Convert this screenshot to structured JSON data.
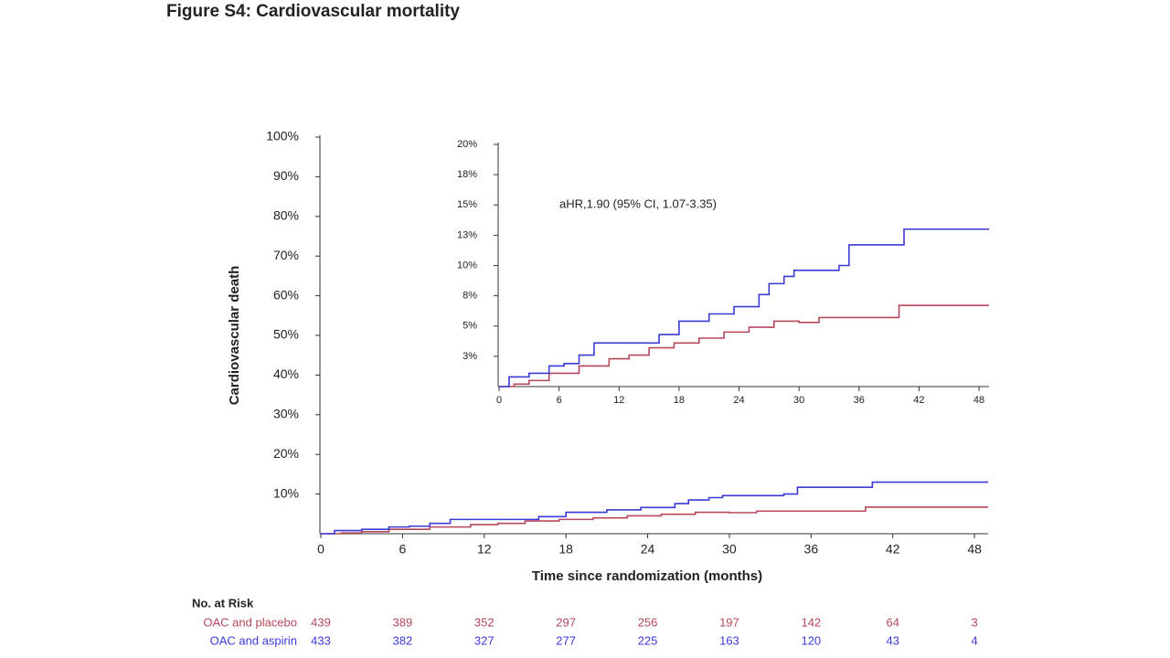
{
  "title": "Figure S4: Cardiovascular mortality",
  "chart_data": [
    {
      "type": "line",
      "step": true,
      "y_label": "Cardiovascular death",
      "x_label": "Time since randomization (months)",
      "xlim": [
        0,
        49
      ],
      "xticks": [
        0,
        6,
        12,
        18,
        24,
        30,
        36,
        42,
        48
      ],
      "ylim": [
        0,
        100
      ],
      "yticks": [
        {
          "value": 10,
          "label": "10%"
        },
        {
          "value": 20,
          "label": "20%"
        },
        {
          "value": 30,
          "label": "30%"
        },
        {
          "value": 40,
          "label": "40%"
        },
        {
          "value": 50,
          "label": "50%"
        },
        {
          "value": 60,
          "label": "60%"
        },
        {
          "value": 70,
          "label": "70%"
        },
        {
          "value": 80,
          "label": "80%"
        },
        {
          "value": 90,
          "label": "90%"
        },
        {
          "value": 100,
          "label": "100%"
        }
      ],
      "series": [
        {
          "name": "OAC and placebo",
          "color": "#b5485a",
          "x": [
            0,
            1.5,
            3,
            5,
            8,
            11,
            13,
            15,
            17.5,
            20,
            22.5,
            25,
            27.5,
            30,
            32,
            40,
            49
          ],
          "values": [
            0,
            0.2,
            0.5,
            1.1,
            1.7,
            2.3,
            2.6,
            3.2,
            3.6,
            4.0,
            4.5,
            4.9,
            5.4,
            5.3,
            5.7,
            6.7,
            6.7
          ]
        },
        {
          "name": "OAC and aspirin",
          "color": "#3a3ad6",
          "x": [
            0,
            1,
            3,
            5,
            6.5,
            8,
            9.5,
            16,
            18,
            21,
            23.5,
            26,
            27,
            28.5,
            29.5,
            34,
            35,
            40.5,
            49
          ],
          "values": [
            0,
            0.8,
            1.1,
            1.7,
            1.9,
            2.6,
            3.6,
            4.3,
            5.4,
            6.0,
            6.6,
            7.6,
            8.5,
            9.1,
            9.6,
            10.0,
            11.7,
            13.0,
            13.0
          ]
        }
      ]
    },
    {
      "type": "line",
      "step": true,
      "annotation": "aHR,1.90 (95% CI, 1.07-3.35)",
      "xlim": [
        0,
        49
      ],
      "xticks": [
        0,
        6,
        12,
        18,
        24,
        30,
        36,
        42,
        48
      ],
      "ylim": [
        0,
        20
      ],
      "yticks": [
        {
          "value": 2.5,
          "label": "3%"
        },
        {
          "value": 5,
          "label": "5%"
        },
        {
          "value": 7.5,
          "label": "8%"
        },
        {
          "value": 10,
          "label": "10%"
        },
        {
          "value": 12.5,
          "label": "13%"
        },
        {
          "value": 15,
          "label": "15%"
        },
        {
          "value": 17.5,
          "label": "18%"
        },
        {
          "value": 20,
          "label": "20%"
        }
      ],
      "series": [
        {
          "name": "OAC and placebo",
          "color": "#b5485a",
          "x": [
            0,
            1.5,
            3,
            5,
            8,
            11,
            13,
            15,
            17.5,
            20,
            22.5,
            25,
            27.5,
            30,
            32,
            40,
            49
          ],
          "values": [
            0,
            0.2,
            0.5,
            1.1,
            1.7,
            2.3,
            2.6,
            3.2,
            3.6,
            4.0,
            4.5,
            4.9,
            5.4,
            5.3,
            5.7,
            6.7,
            6.7
          ]
        },
        {
          "name": "OAC and aspirin",
          "color": "#3a3ad6",
          "x": [
            0,
            1,
            3,
            5,
            6.5,
            8,
            9.5,
            16,
            18,
            21,
            23.5,
            26,
            27,
            28.5,
            29.5,
            34,
            35,
            40.5,
            49
          ],
          "values": [
            0,
            0.8,
            1.1,
            1.7,
            1.9,
            2.6,
            3.6,
            4.3,
            5.4,
            6.0,
            6.6,
            7.6,
            8.5,
            9.1,
            9.6,
            10.0,
            11.7,
            13.0,
            13.0
          ]
        }
      ]
    }
  ],
  "risk_table": {
    "title": "No. at Risk",
    "rows": [
      {
        "name": "OAC and placebo",
        "color": "#b5485a",
        "values": [
          439,
          389,
          352,
          297,
          256,
          197,
          142,
          64,
          3
        ]
      },
      {
        "name": "OAC and aspirin",
        "color": "#3a3ad6",
        "values": [
          433,
          382,
          327,
          277,
          225,
          163,
          120,
          43,
          4
        ]
      }
    ]
  }
}
